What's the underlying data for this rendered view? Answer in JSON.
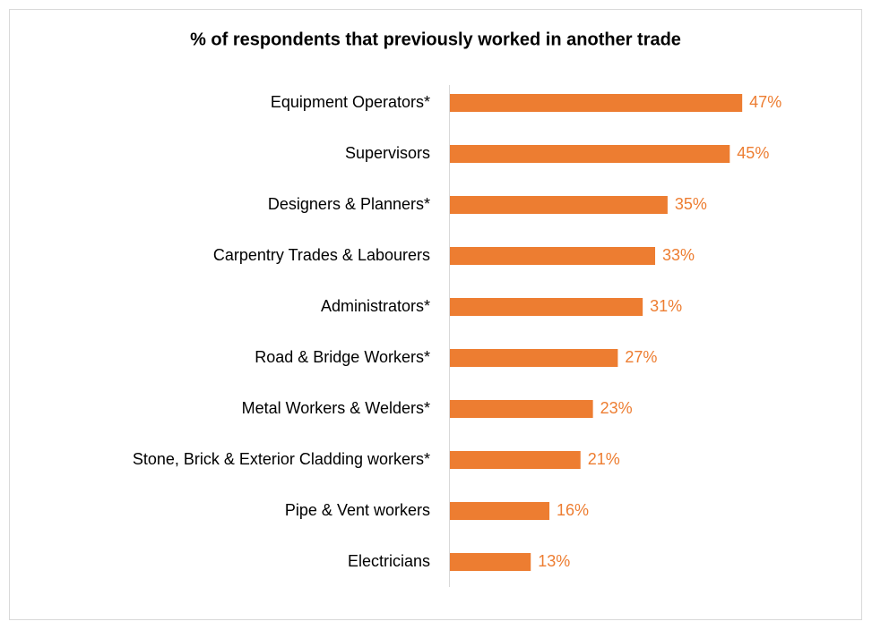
{
  "chart_data": {
    "type": "bar",
    "orientation": "horizontal",
    "title": "% of respondents that previously worked in another trade",
    "categories": [
      "Equipment Operators*",
      "Supervisors",
      "Designers & Planners*",
      "Carpentry Trades & Labourers",
      "Administrators*",
      "Road & Bridge Workers*",
      "Metal Workers & Welders*",
      "Stone, Brick & Exterior Cladding workers*",
      "Pipe & Vent workers",
      "Electricians"
    ],
    "values": [
      47,
      45,
      35,
      33,
      31,
      27,
      23,
      21,
      16,
      13
    ],
    "value_labels": [
      "47%",
      "45%",
      "35%",
      "33%",
      "31%",
      "27%",
      "23%",
      "21%",
      "16%",
      "13%"
    ],
    "color": "#ed7d31"
  }
}
